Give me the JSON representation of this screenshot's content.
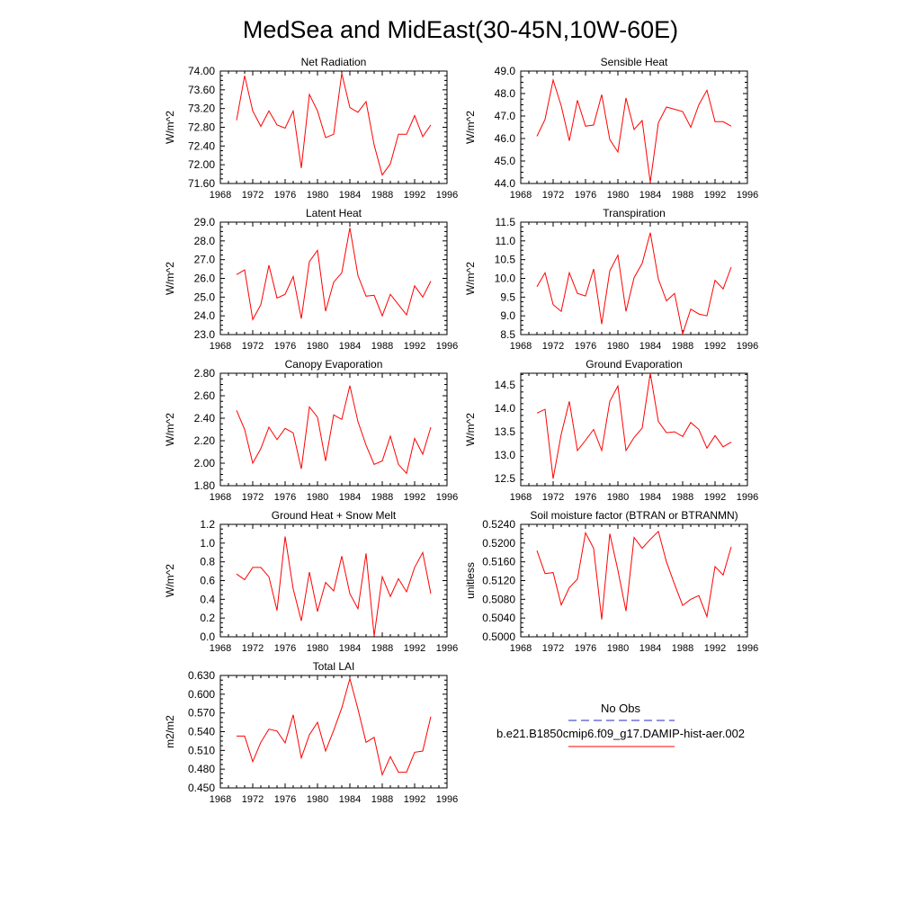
{
  "title": "MedSea and MidEast(30-45N,10W-60E)",
  "colors": {
    "model_line": "#ff0000",
    "obs_line": "#2424c8",
    "frame": "#000000"
  },
  "legend": {
    "obs_label": "No Obs",
    "model_label": "b.e21.B1850cmip6.f09_g17.DAMIP-hist-aer.002"
  },
  "chart_data": [
    {
      "type": "line",
      "title": "Net Radiation",
      "ylabel": "W/m^2",
      "xlim": [
        1968,
        1996
      ],
      "ylim": [
        71.6,
        74.0
      ],
      "xticks": [
        "1968",
        "1972",
        "1976",
        "1980",
        "1984",
        "1988",
        "1992",
        "1996"
      ],
      "yticks": [
        "71.60",
        "72.00",
        "72.40",
        "72.80",
        "73.20",
        "73.60",
        "74.00"
      ],
      "series": [
        {
          "x": [
            1970,
            1971,
            1972,
            1973,
            1974,
            1975,
            1976,
            1977,
            1978,
            1979,
            1980,
            1981,
            1982,
            1983,
            1984,
            1985,
            1986,
            1987,
            1988,
            1989,
            1990,
            1991,
            1992,
            1993,
            1994
          ],
          "values": [
            72.95,
            73.9,
            73.15,
            72.82,
            73.15,
            72.85,
            72.78,
            73.15,
            71.93,
            73.5,
            73.15,
            72.58,
            72.65,
            73.95,
            73.22,
            73.12,
            73.35,
            72.42,
            71.78,
            72.02,
            72.65,
            72.65,
            73.05,
            72.6,
            72.85
          ]
        }
      ]
    },
    {
      "type": "line",
      "title": "Sensible Heat",
      "ylabel": "W/m^2",
      "xlim": [
        1968,
        1996
      ],
      "ylim": [
        44.0,
        49.0
      ],
      "xticks": [
        "1968",
        "1972",
        "1976",
        "1980",
        "1984",
        "1988",
        "1992",
        "1996"
      ],
      "yticks": [
        "44.0",
        "45.0",
        "46.0",
        "47.0",
        "48.0",
        "49.0"
      ],
      "series": [
        {
          "x": [
            1970,
            1971,
            1972,
            1973,
            1974,
            1975,
            1976,
            1977,
            1978,
            1979,
            1980,
            1981,
            1982,
            1983,
            1984,
            1985,
            1986,
            1987,
            1988,
            1989,
            1990,
            1991,
            1992,
            1993,
            1994
          ],
          "values": [
            46.1,
            46.85,
            48.6,
            47.45,
            45.9,
            47.7,
            46.55,
            46.6,
            47.95,
            45.95,
            45.4,
            47.8,
            46.4,
            46.8,
            44.05,
            46.7,
            47.4,
            47.3,
            47.2,
            46.5,
            47.5,
            48.15,
            46.75,
            46.75,
            46.55
          ]
        }
      ]
    },
    {
      "type": "line",
      "title": "Latent Heat",
      "ylabel": "W/m^2",
      "xlim": [
        1968,
        1996
      ],
      "ylim": [
        23.0,
        29.0
      ],
      "xticks": [
        "1968",
        "1972",
        "1976",
        "1980",
        "1984",
        "1988",
        "1992",
        "1996"
      ],
      "yticks": [
        "23.0",
        "24.0",
        "25.0",
        "26.0",
        "27.0",
        "28.0",
        "29.0"
      ],
      "series": [
        {
          "x": [
            1970,
            1971,
            1972,
            1973,
            1974,
            1975,
            1976,
            1977,
            1978,
            1979,
            1980,
            1981,
            1982,
            1983,
            1984,
            1985,
            1986,
            1987,
            1988,
            1989,
            1990,
            1991,
            1992,
            1993,
            1994
          ],
          "values": [
            26.2,
            26.45,
            23.8,
            24.6,
            26.7,
            24.95,
            25.15,
            26.1,
            23.85,
            26.9,
            27.5,
            24.25,
            25.8,
            26.3,
            28.7,
            26.15,
            25.05,
            25.1,
            24.0,
            25.15,
            24.6,
            24.05,
            25.6,
            25.0,
            25.85
          ]
        }
      ]
    },
    {
      "type": "line",
      "title": "Transpiration",
      "ylabel": "W/m^2",
      "xlim": [
        1968,
        1996
      ],
      "ylim": [
        8.5,
        11.5
      ],
      "xticks": [
        "1968",
        "1972",
        "1976",
        "1980",
        "1984",
        "1988",
        "1992",
        "1996"
      ],
      "yticks": [
        "8.5",
        "9.0",
        "9.5",
        "10.0",
        "10.5",
        "11.0",
        "11.5"
      ],
      "series": [
        {
          "x": [
            1970,
            1971,
            1972,
            1973,
            1974,
            1975,
            1976,
            1977,
            1978,
            1979,
            1980,
            1981,
            1982,
            1983,
            1984,
            1985,
            1986,
            1987,
            1988,
            1989,
            1990,
            1991,
            1992,
            1993,
            1994
          ],
          "values": [
            9.78,
            10.15,
            9.3,
            9.12,
            10.15,
            9.6,
            9.53,
            10.25,
            8.78,
            10.2,
            10.62,
            9.12,
            10.02,
            10.4,
            11.22,
            9.98,
            9.4,
            9.6,
            8.52,
            9.18,
            9.05,
            9.0,
            9.95,
            9.72,
            10.3
          ]
        }
      ]
    },
    {
      "type": "line",
      "title": "Canopy Evaporation",
      "ylabel": "W/m^2",
      "xlim": [
        1968,
        1996
      ],
      "ylim": [
        1.8,
        2.8
      ],
      "xticks": [
        "1968",
        "1972",
        "1976",
        "1980",
        "1984",
        "1988",
        "1992",
        "1996"
      ],
      "yticks": [
        "1.80",
        "2.00",
        "2.20",
        "2.40",
        "2.60",
        "2.80"
      ],
      "series": [
        {
          "x": [
            1970,
            1971,
            1972,
            1973,
            1974,
            1975,
            1976,
            1977,
            1978,
            1979,
            1980,
            1981,
            1982,
            1983,
            1984,
            1985,
            1986,
            1987,
            1988,
            1989,
            1990,
            1991,
            1992,
            1993,
            1994
          ],
          "values": [
            2.47,
            2.3,
            2.0,
            2.13,
            2.32,
            2.21,
            2.31,
            2.27,
            1.95,
            2.5,
            2.41,
            2.02,
            2.43,
            2.39,
            2.69,
            2.37,
            2.16,
            1.99,
            2.02,
            2.24,
            1.99,
            1.91,
            2.22,
            2.08,
            2.32
          ]
        }
      ]
    },
    {
      "type": "line",
      "title": "Ground Evaporation",
      "ylabel": "W/m^2",
      "xlim": [
        1968,
        1996
      ],
      "ylim": [
        12.35,
        14.75
      ],
      "xticks": [
        "1968",
        "1972",
        "1976",
        "1980",
        "1984",
        "1988",
        "1992",
        "1996"
      ],
      "yticks": [
        "12.5",
        "13.0",
        "13.5",
        "14.0",
        "14.5"
      ],
      "series": [
        {
          "x": [
            1970,
            1971,
            1972,
            1973,
            1974,
            1975,
            1976,
            1977,
            1978,
            1979,
            1980,
            1981,
            1982,
            1983,
            1984,
            1985,
            1986,
            1987,
            1988,
            1989,
            1990,
            1991,
            1992,
            1993,
            1994
          ],
          "values": [
            13.9,
            13.98,
            12.5,
            13.45,
            14.15,
            13.1,
            13.32,
            13.55,
            13.1,
            14.15,
            14.48,
            13.1,
            13.38,
            13.58,
            14.75,
            13.72,
            13.48,
            13.5,
            13.4,
            13.7,
            13.55,
            13.15,
            13.42,
            13.18,
            13.28
          ]
        }
      ]
    },
    {
      "type": "line",
      "title": "Ground Heat + Snow Melt",
      "ylabel": "W/m^2",
      "xlim": [
        1968,
        1996
      ],
      "ylim": [
        0.0,
        1.2
      ],
      "xticks": [
        "1968",
        "1972",
        "1976",
        "1980",
        "1984",
        "1988",
        "1992",
        "1996"
      ],
      "yticks": [
        "0.0",
        "0.2",
        "0.4",
        "0.6",
        "0.8",
        "1.0",
        "1.2"
      ],
      "series": [
        {
          "x": [
            1970,
            1971,
            1972,
            1973,
            1974,
            1975,
            1976,
            1977,
            1978,
            1979,
            1980,
            1981,
            1982,
            1983,
            1984,
            1985,
            1986,
            1987,
            1988,
            1989,
            1990,
            1991,
            1992,
            1993,
            1994
          ],
          "values": [
            0.67,
            0.61,
            0.74,
            0.74,
            0.64,
            0.28,
            1.07,
            0.51,
            0.17,
            0.69,
            0.27,
            0.58,
            0.49,
            0.86,
            0.46,
            0.3,
            0.89,
            0.01,
            0.64,
            0.43,
            0.62,
            0.48,
            0.74,
            0.9,
            0.46
          ]
        }
      ]
    },
    {
      "type": "line",
      "title": "Soil moisture factor (BTRAN or BTRANMN)",
      "ylabel": "unitless",
      "xlim": [
        1968,
        1996
      ],
      "ylim": [
        0.5,
        0.524
      ],
      "xticks": [
        "1968",
        "1972",
        "1976",
        "1980",
        "1984",
        "1988",
        "1992",
        "1996"
      ],
      "yticks": [
        "0.5000",
        "0.5040",
        "0.5080",
        "0.5120",
        "0.5160",
        "0.5200",
        "0.5240"
      ],
      "series": [
        {
          "x": [
            1970,
            1971,
            1972,
            1973,
            1974,
            1975,
            1976,
            1977,
            1978,
            1979,
            1980,
            1981,
            1982,
            1983,
            1984,
            1985,
            1986,
            1987,
            1988,
            1989,
            1990,
            1991,
            1992,
            1993,
            1994
          ],
          "values": [
            0.5184,
            0.5135,
            0.5137,
            0.5068,
            0.5105,
            0.5123,
            0.5222,
            0.5189,
            0.5037,
            0.522,
            0.5142,
            0.5055,
            0.5212,
            0.5189,
            0.5208,
            0.5225,
            0.516,
            0.5112,
            0.5067,
            0.508,
            0.5088,
            0.5043,
            0.515,
            0.5132,
            0.5192
          ]
        }
      ]
    },
    {
      "type": "line",
      "title": "Total LAI",
      "ylabel": "m2/m2",
      "xlim": [
        1968,
        1996
      ],
      "ylim": [
        0.45,
        0.63
      ],
      "xticks": [
        "1968",
        "1972",
        "1976",
        "1980",
        "1984",
        "1988",
        "1992",
        "1996"
      ],
      "yticks": [
        "0.450",
        "0.480",
        "0.510",
        "0.540",
        "0.570",
        "0.600",
        "0.630"
      ],
      "series": [
        {
          "x": [
            1970,
            1971,
            1972,
            1973,
            1974,
            1975,
            1976,
            1977,
            1978,
            1979,
            1980,
            1981,
            1982,
            1983,
            1984,
            1985,
            1986,
            1987,
            1988,
            1989,
            1990,
            1991,
            1992,
            1993,
            1994
          ],
          "values": [
            0.533,
            0.533,
            0.492,
            0.523,
            0.544,
            0.541,
            0.522,
            0.567,
            0.498,
            0.535,
            0.555,
            0.509,
            0.542,
            0.578,
            0.625,
            0.576,
            0.523,
            0.531,
            0.471,
            0.5,
            0.475,
            0.475,
            0.507,
            0.509,
            0.564
          ]
        }
      ]
    }
  ]
}
